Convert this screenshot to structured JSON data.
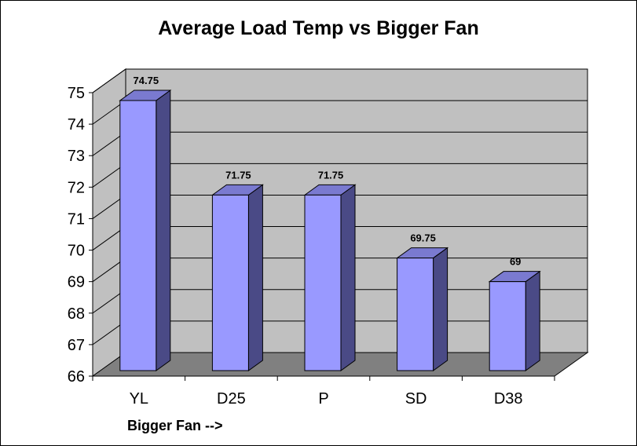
{
  "chart_data": {
    "type": "bar",
    "title": "Average Load Temp vs Bigger Fan",
    "xlabel": "Bigger Fan -->",
    "ylabel": "",
    "categories": [
      "YL",
      "D25",
      "P",
      "SD",
      "D38"
    ],
    "values": [
      74.75,
      71.75,
      71.75,
      69.75,
      69
    ],
    "data_labels": [
      "74.75",
      "71.75",
      "71.75",
      "69.75",
      "69"
    ],
    "ylim": [
      66,
      75
    ],
    "yticks": [
      66,
      67,
      68,
      69,
      70,
      71,
      72,
      73,
      74,
      75
    ],
    "grid": true,
    "legend": "none",
    "style": "3d",
    "colors": {
      "bar_front": "#9999ff",
      "bar_side": "#4a4a86",
      "bar_top": "#7a7ad0",
      "plot_wall": "#c0c0c0",
      "floor": "#808080"
    }
  }
}
